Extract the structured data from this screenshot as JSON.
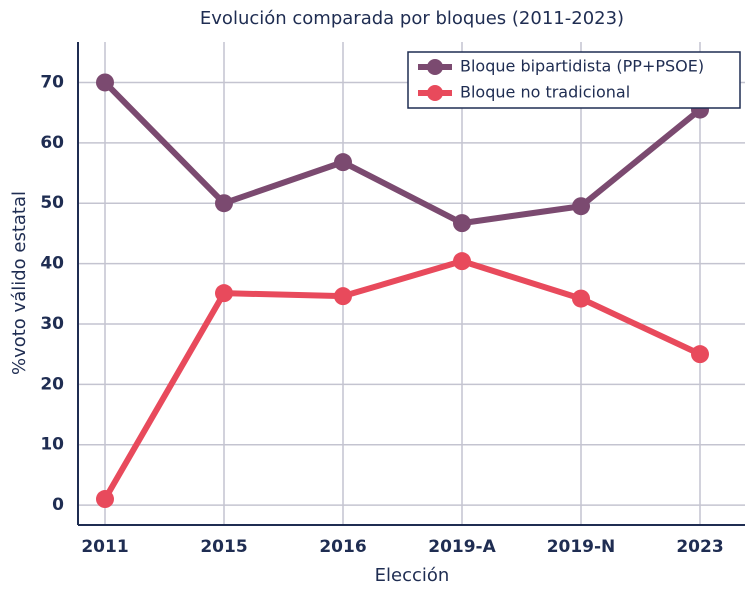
{
  "chart_data": {
    "type": "line",
    "title": "Evolución comparada por bloques (2011-2023)",
    "x_label": "Elección",
    "y_label": "%voto válido estatal",
    "categories": [
      "2011",
      "2015",
      "2016",
      "2019-A",
      "2019-N",
      "2023"
    ],
    "series": [
      {
        "name": "Bloque bipartidista (PP+PSOE)",
        "color": "#7b4a70",
        "values": [
          70.0,
          50.0,
          56.8,
          46.7,
          49.5,
          65.5
        ]
      },
      {
        "name": "Bloque no tradicional",
        "color": "#e84a5c",
        "values": [
          1.0,
          35.1,
          34.6,
          40.4,
          34.2,
          25.0
        ]
      }
    ],
    "ylim": [
      -3.3,
      76.7
    ],
    "yticks": [
      0,
      10,
      20,
      30,
      40,
      50,
      60,
      70
    ],
    "grid": true,
    "legend": "upper right"
  }
}
